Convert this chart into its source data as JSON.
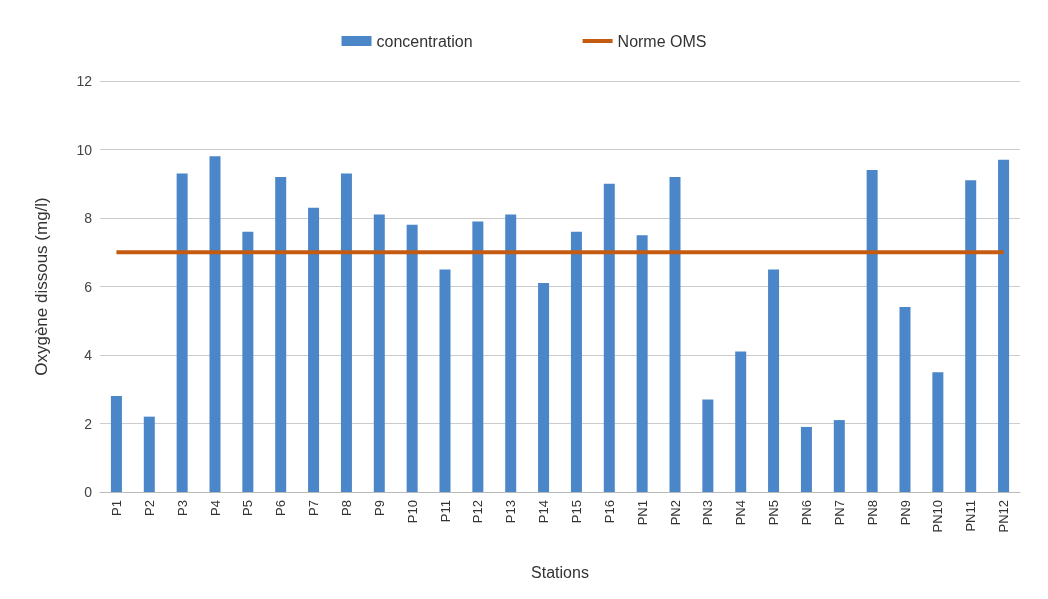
{
  "chart_data": {
    "type": "bar",
    "xlabel": "Stations",
    "ylabel": "Oxygène dissous (mg/l)",
    "categories": [
      "P1",
      "P2",
      "P3",
      "P4",
      "P5",
      "P6",
      "P7",
      "P8",
      "P9",
      "P10",
      "P11",
      "P12",
      "P13",
      "P14",
      "P15",
      "P16",
      "PN1",
      "PN2",
      "PN3",
      "PN4",
      "PN5",
      "PN6",
      "PN7",
      "PN8",
      "PN9",
      "PN10",
      "PN11",
      "PN12"
    ],
    "series": [
      {
        "name": "concentration",
        "color": "#4a86c8",
        "values": [
          2.8,
          2.2,
          9.3,
          9.8,
          7.6,
          9.2,
          8.3,
          9.3,
          8.1,
          7.8,
          6.5,
          7.9,
          8.1,
          6.1,
          7.6,
          9.0,
          7.5,
          9.2,
          2.7,
          4.1,
          6.5,
          1.9,
          2.1,
          9.4,
          5.4,
          3.5,
          9.1,
          9.7
        ]
      },
      {
        "name": "Norme OMS",
        "type": "line",
        "color": "#c55a11",
        "marker": "none",
        "values": [
          7,
          7,
          7,
          7,
          7,
          7,
          7,
          7,
          7,
          7,
          7,
          7,
          7,
          7,
          7,
          7,
          7,
          7,
          7,
          7,
          7,
          7,
          7,
          7,
          7,
          7,
          7,
          7
        ]
      }
    ],
    "ylim": [
      0,
      12
    ],
    "yticks": [
      0,
      2,
      4,
      6,
      8,
      10,
      12
    ],
    "grid": "y",
    "legend": "top"
  }
}
